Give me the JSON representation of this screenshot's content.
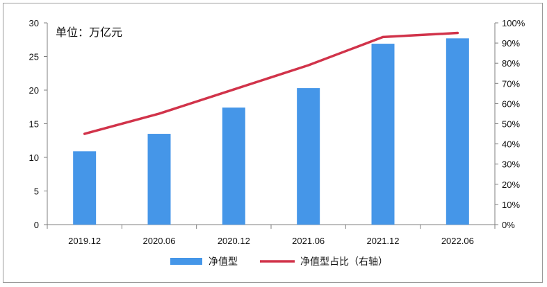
{
  "chart_data": {
    "type": "bar",
    "unit_label": "单位：万亿元",
    "categories": [
      "2019.12",
      "2020.06",
      "2020.12",
      "2021.06",
      "2021.12",
      "2022.06"
    ],
    "series": [
      {
        "name": "净值型",
        "type": "bar",
        "axis": "left",
        "values": [
          10.9,
          13.5,
          17.4,
          20.3,
          26.9,
          27.7
        ],
        "color": "#4596e8"
      },
      {
        "name": "净值型占比（右轴）",
        "type": "line",
        "axis": "right",
        "values": [
          45,
          55,
          67,
          79,
          93,
          95
        ],
        "color": "#d1334a"
      }
    ],
    "y_left": {
      "range": [
        0,
        30
      ],
      "ticks": [
        "0",
        "5",
        "10",
        "15",
        "20",
        "25",
        "30"
      ]
    },
    "y_right": {
      "range": [
        0,
        100
      ],
      "ticks": [
        "0%",
        "10%",
        "20%",
        "30%",
        "40%",
        "50%",
        "60%",
        "70%",
        "80%",
        "90%",
        "100%"
      ]
    },
    "grid": false,
    "legend_position": "bottom"
  }
}
